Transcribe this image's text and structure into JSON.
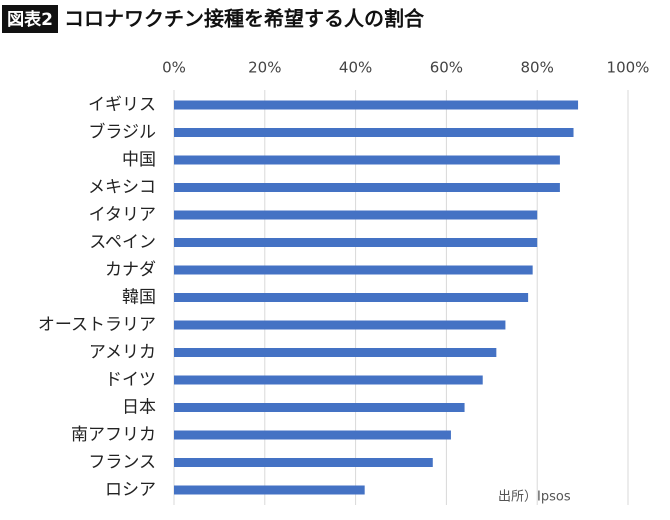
{
  "chart_data": {
    "type": "bar",
    "orientation": "horizontal",
    "badge": "図表2",
    "title": "コロナワクチン接種を希望する人の割合",
    "source": "出所）Ipsos",
    "categories": [
      "イギリス",
      "ブラジル",
      "中国",
      "メキシコ",
      "イタリア",
      "スペイン",
      "カナダ",
      "韓国",
      "オーストラリア",
      "アメリカ",
      "ドイツ",
      "日本",
      "南アフリカ",
      "フランス",
      "ロシア"
    ],
    "values": [
      89,
      88,
      85,
      85,
      80,
      80,
      79,
      78,
      73,
      71,
      68,
      64,
      61,
      57,
      42
    ],
    "color": "#4472c4",
    "xlim": [
      0,
      100
    ],
    "xticks": [
      {
        "value": 0,
        "label": "0%"
      },
      {
        "value": 20,
        "label": "20%"
      },
      {
        "value": 40,
        "label": "40%"
      },
      {
        "value": 60,
        "label": "60%"
      },
      {
        "value": 80,
        "label": "80%"
      },
      {
        "value": 100,
        "label": "100%"
      }
    ],
    "grid": true
  }
}
